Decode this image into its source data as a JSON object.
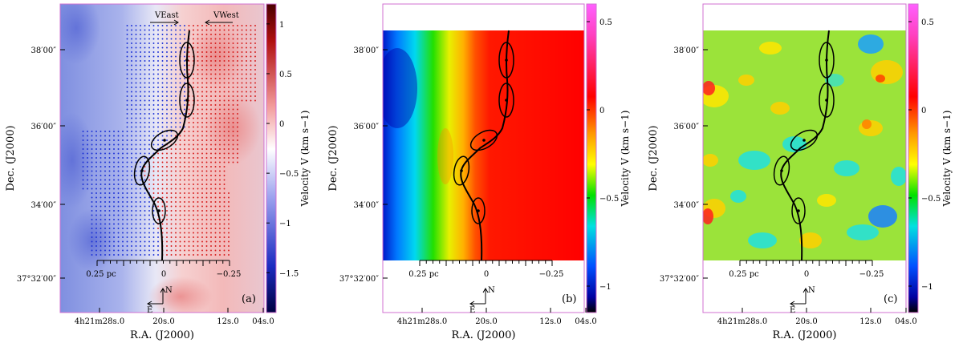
{
  "chart_data": [
    {
      "type": "heatmap",
      "panel_label": "(a)",
      "xlabel": "R.A. (J2000)",
      "ylabel": "Dec. (J2000)",
      "x_ticks": [
        "4h21m28s.0",
        "20s.0",
        "12s.0",
        "04s.0"
      ],
      "y_ticks": [
        "37°32′00″",
        "34′00″",
        "36′00″",
        "38′00″"
      ],
      "colorbar": {
        "label": "Velocity V (km s−1)",
        "ticks": [
          1,
          0.5,
          0,
          -0.5,
          -1,
          -1.5
        ],
        "range": [
          -1.9,
          1.2
        ],
        "colormap": "blue-white-red"
      },
      "scalebar": {
        "labels": [
          "0.25 pc",
          "0",
          "−0.25"
        ]
      },
      "arrows": {
        "east": "VEast",
        "west": "VWest"
      },
      "compass": {
        "north": "N",
        "east": "E"
      },
      "dot_grid": {
        "left_color": "#1a2fd6",
        "right_color": "#d61a1a"
      }
    },
    {
      "type": "heatmap",
      "panel_label": "(b)",
      "xlabel": "R.A. (J2000)",
      "ylabel": "Dec. (J2000)",
      "x_ticks": [
        "4h21m28s.0",
        "20s.0",
        "12s.0",
        "04s.0"
      ],
      "y_ticks": [
        "37°32′00″",
        "34′00″",
        "36′00″",
        "38′00″"
      ],
      "colorbar": {
        "label": "Velocity V (km s−1)",
        "ticks": [
          0.5,
          0,
          -0.5,
          -1
        ],
        "range": [
          -1.15,
          0.6
        ],
        "colormap": "rainbow"
      },
      "scalebar": {
        "labels": [
          "0.25 pc",
          "0",
          "−0.25"
        ]
      },
      "compass": {
        "north": "N",
        "east": "E"
      }
    },
    {
      "type": "heatmap",
      "panel_label": "(c)",
      "xlabel": "R.A. (J2000)",
      "ylabel": "Dec. (J2000)",
      "x_ticks": [
        "4h21m28s.0",
        "20s.0",
        "12s.0",
        "04s.0"
      ],
      "y_ticks": [
        "37°32′00″",
        "34′00″",
        "36′00″",
        "38′00″"
      ],
      "colorbar": {
        "label": "Velocity V (km s−1)",
        "ticks": [
          0.5,
          0,
          -0.5,
          -1
        ],
        "range": [
          -1.15,
          0.6
        ],
        "colormap": "rainbow"
      },
      "scalebar": {
        "labels": [
          "0.25 pc",
          "0",
          "−0.25"
        ]
      },
      "compass": {
        "north": "N",
        "east": "E"
      }
    }
  ],
  "colors": {
    "frame": "#d070d0",
    "filament": "#000000"
  }
}
